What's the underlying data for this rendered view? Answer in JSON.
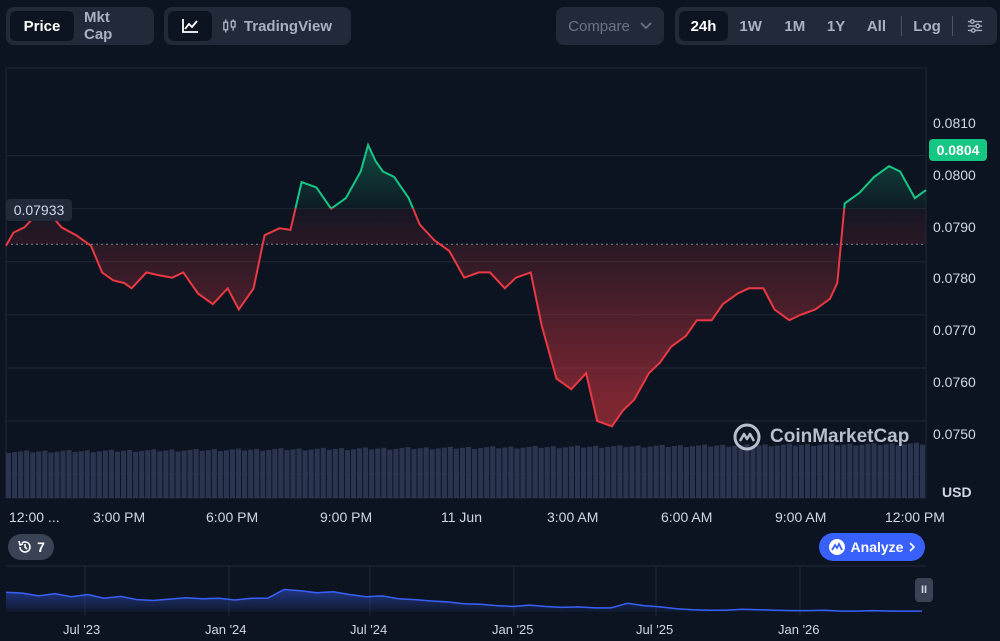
{
  "toolbar": {
    "metric_tabs": [
      "Price",
      "Mkt Cap"
    ],
    "active_metric": "Price",
    "chart_mode_label": "TradingView",
    "compare_label": "Compare",
    "range_tabs": [
      "24h",
      "1W",
      "1M",
      "1Y",
      "All"
    ],
    "active_range": "24h",
    "log_label": "Log"
  },
  "colors": {
    "up": "#16c784",
    "down": "#ea3943",
    "background": "#0d1421",
    "accent": "#3861fb"
  },
  "reference_price_label": "0.07933",
  "current_price_label": "0.0804",
  "history_count": "7",
  "analyze_label": "Analyze",
  "brand_label": "CoinMarketCap",
  "currency_label": "USD",
  "chart_data": {
    "type": "line",
    "reference_price": 0.07933,
    "current_price": 0.0804,
    "ylim": [
      0.07455,
      0.08265
    ],
    "y_ticks": [
      0.075,
      0.076,
      0.077,
      0.078,
      0.079,
      0.08,
      0.081
    ],
    "y_tick_labels": [
      "0.0750",
      "0.0760",
      "0.0770",
      "0.0780",
      "0.0790",
      "0.0800",
      "0.0810"
    ],
    "x_tick_labels": [
      "12:00 ...",
      "3:00 PM",
      "6:00 PM",
      "9:00 PM",
      "11 Jun",
      "3:00 AM",
      "6:00 AM",
      "9:00 AM",
      "12:00 PM"
    ],
    "x_hours": [
      11.1,
      12.1,
      13.1,
      14.1,
      15.1,
      16.1,
      17.1,
      18.1,
      19.1,
      20.1,
      21.1,
      22.1,
      23.1,
      24.1,
      25.1,
      26.1,
      27.1,
      28.1,
      29.1,
      30.1,
      31.1,
      32.1,
      33.1,
      34.1,
      35.1
    ],
    "series": [
      {
        "x": [
          0,
          0.2,
          0.5,
          0.9,
          1.2,
          1.5,
          1.9,
          2.3,
          2.6,
          2.9,
          3.2,
          3.4,
          3.8,
          4.1,
          4.5,
          4.8,
          5.2,
          5.6,
          6.0,
          6.3,
          6.7,
          7.0,
          7.4,
          7.7,
          8.0,
          8.4,
          8.8,
          9.2,
          9.6,
          9.8,
          10.0,
          10.2,
          10.5,
          10.9,
          11.2,
          11.6,
          12.0,
          12.4,
          12.8,
          13.1,
          13.5,
          13.8,
          14.2,
          14.5,
          14.9,
          15.3,
          15.7,
          16.0,
          16.4,
          16.7,
          17.0,
          17.4,
          17.7,
          18.0,
          18.4,
          18.7,
          19.1,
          19.4,
          19.8,
          20.1,
          20.5,
          20.8,
          21.2,
          21.5,
          21.9,
          22.3,
          22.5,
          22.7,
          23.1,
          23.5,
          23.9,
          24.2,
          24.6,
          24.9
        ],
        "y": [
          0.0793,
          0.07955,
          0.07965,
          0.07995,
          0.0799,
          0.07965,
          0.0795,
          0.0793,
          0.0788,
          0.07865,
          0.0786,
          0.0785,
          0.0788,
          0.07875,
          0.0787,
          0.0788,
          0.0784,
          0.0782,
          0.0785,
          0.0781,
          0.0785,
          0.0795,
          0.07963,
          0.0796,
          0.0805,
          0.0804,
          0.08,
          0.0802,
          0.0807,
          0.0812,
          0.0809,
          0.0807,
          0.0806,
          0.0802,
          0.0797,
          0.0794,
          0.0792,
          0.0787,
          0.0788,
          0.0788,
          0.0785,
          0.0787,
          0.0788,
          0.0778,
          0.0768,
          0.0766,
          0.0769,
          0.076,
          0.0759,
          0.0762,
          0.0764,
          0.0769,
          0.0771,
          0.0774,
          0.0776,
          0.0779,
          0.0779,
          0.0782,
          0.0784,
          0.0785,
          0.0785,
          0.0781,
          0.0779,
          0.078,
          0.0781,
          0.0783,
          0.0786,
          0.0801,
          0.0803,
          0.0806,
          0.0808,
          0.0807,
          0.0802,
          0.08035
        ]
      }
    ],
    "volume_bars_count": 152,
    "overview": {
      "type": "area",
      "x_tick_labels": [
        "Jul '23",
        "Jan '24",
        "Jul '24",
        "Jan '25",
        "Jul '25",
        "Jan '26"
      ],
      "relative_level": [
        0.43,
        0.41,
        0.35,
        0.4,
        0.33,
        0.38,
        0.3,
        0.34,
        0.27,
        0.25,
        0.28,
        0.31,
        0.29,
        0.3,
        0.26,
        0.3,
        0.3,
        0.49,
        0.46,
        0.42,
        0.44,
        0.38,
        0.33,
        0.35,
        0.29,
        0.27,
        0.24,
        0.22,
        0.18,
        0.17,
        0.14,
        0.12,
        0.15,
        0.12,
        0.1,
        0.11,
        0.09,
        0.09,
        0.19,
        0.14,
        0.11,
        0.07,
        0.05,
        0.04,
        0.04,
        0.06,
        0.05,
        0.04,
        0.03,
        0.03,
        0.04,
        0.02,
        0.02,
        0.03,
        0.02,
        0.02,
        0.02
      ]
    }
  }
}
